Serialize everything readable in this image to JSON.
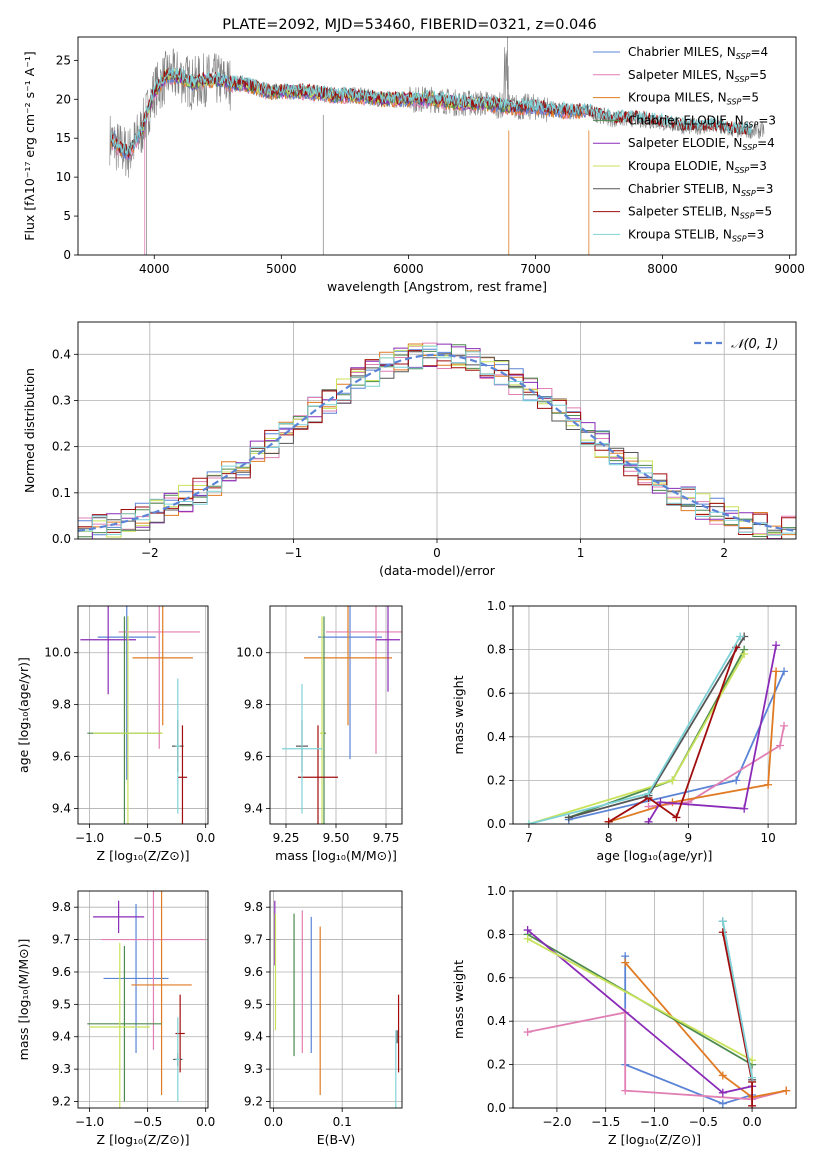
{
  "title": "PLATE=2092, MJD=53460, FIBERID=0321, z=0.046",
  "colors": {
    "Chabrier MILES": "#5b84d6",
    "Salpeter MILES": "#e17fb4",
    "Kroupa MILES": "#e07b23",
    "Chabrier ELODIE": "#4d8a4f",
    "Salpeter ELODIE": "#8a2bb7",
    "Kroupa ELODIE": "#c8e25a",
    "Chabrier STELIB": "#555555",
    "Salpeter STELIB": "#a10d0d",
    "Kroupa STELIB": "#7fd3d8",
    "normal": "#5b84d6"
  },
  "chart_data": [
    {
      "id": "spectrum",
      "type": "line",
      "xlabel": "wavelength [Angstrom, rest frame]",
      "ylabel": "Flux [fλ10⁻¹⁷ erg cm⁻² s⁻¹ A⁻¹]",
      "xlim": [
        3400,
        9050
      ],
      "ylim": [
        0,
        28
      ],
      "xticks": [
        4000,
        5000,
        6000,
        7000,
        8000,
        9000
      ],
      "yticks": [
        0,
        5,
        10,
        15,
        20,
        25
      ],
      "legend_position": "top-right",
      "legend": [
        {
          "model": "Chabrier MILES",
          "label": "Chabrier MILES, N",
          "n": "=4"
        },
        {
          "model": "Salpeter MILES",
          "label": "Salpeter MILES, N",
          "n": "=5"
        },
        {
          "model": "Kroupa MILES",
          "label": "Kroupa MILES, N",
          "n": "=5"
        },
        {
          "model": "Chabrier ELODIE",
          "label": "Chabrier ELODIE, N",
          "n": "=3"
        },
        {
          "model": "Salpeter ELODIE",
          "label": "Salpeter ELODIE, N",
          "n": "=4"
        },
        {
          "model": "Kroupa ELODIE",
          "label": "Kroupa ELODIE, N",
          "n": "=3"
        },
        {
          "model": "Chabrier STELIB",
          "label": "Chabrier STELIB, N",
          "n": "=3"
        },
        {
          "model": "Salpeter STELIB",
          "label": "Salpeter STELIB, N",
          "n": "=5"
        },
        {
          "model": "Kroupa STELIB",
          "label": "Kroupa STELIB, N",
          "n": "=3"
        }
      ],
      "data_series": {
        "wavelength": [
          3650,
          3700,
          3800,
          3900,
          4000,
          4100,
          4200,
          4300,
          4400,
          4500,
          4600,
          4700,
          4800,
          4900,
          5000,
          5200,
          5400,
          5600,
          5800,
          6000,
          6200,
          6400,
          6600,
          6800,
          7000,
          7200,
          7400,
          7600,
          7800,
          8000,
          8200,
          8400,
          8600,
          8800
        ],
        "flux": [
          15,
          14,
          13,
          16,
          21,
          23,
          23,
          22,
          22.5,
          22.5,
          22,
          22,
          21.5,
          21,
          21,
          21,
          20.5,
          20.5,
          20,
          20,
          20,
          19.5,
          19.5,
          19,
          19,
          18.5,
          18.5,
          17.5,
          17.5,
          17,
          16.5,
          16.5,
          16,
          16
        ]
      }
    },
    {
      "id": "residuals",
      "type": "histogram",
      "xlabel": "(data-model)/error",
      "ylabel": "Normed distribution",
      "xlim": [
        -2.5,
        2.5
      ],
      "ylim": [
        0,
        0.47
      ],
      "xticks": [
        -2,
        -1,
        0,
        1,
        2
      ],
      "yticks": [
        0.0,
        0.1,
        0.2,
        0.3,
        0.4
      ],
      "grid": true,
      "legend_position": "top-right",
      "legend": "𝒩(0, 1)"
    },
    {
      "id": "age_vs_Z",
      "type": "errorbar",
      "xlabel": "Z [log₁₀(Z/Z⊙)]",
      "ylabel": "age  [log₁₀(age/yr)]",
      "xlim": [
        -1.1,
        0.02
      ],
      "ylim": [
        9.34,
        10.18
      ],
      "xticks": [
        -1.0,
        -0.5,
        0.0
      ],
      "yticks": [
        9.4,
        9.6,
        9.8,
        10.0
      ],
      "grid": true,
      "points": [
        {
          "model": "Chabrier MILES",
          "x": -0.68,
          "xerr": 0.25,
          "y": 10.06,
          "yerr": 0.55
        },
        {
          "model": "Salpeter MILES",
          "x": -0.4,
          "xerr": 0.35,
          "y": 10.08,
          "yerr": 0.45
        },
        {
          "model": "Kroupa MILES",
          "x": -0.37,
          "xerr": 0.26,
          "y": 9.98,
          "yerr": 0.26
        },
        {
          "model": "Chabrier ELODIE",
          "x": -0.7,
          "xerr": 0.32,
          "y": 9.69,
          "yerr": 0.45
        },
        {
          "model": "Salpeter ELODIE",
          "x": -0.84,
          "xerr": 0.24,
          "y": 10.05,
          "yerr": 0.21
        },
        {
          "model": "Kroupa ELODIE",
          "x": -0.67,
          "xerr": 0.3,
          "y": 9.69,
          "yerr": 0.45
        },
        {
          "model": "Chabrier STELIB",
          "x": -0.24,
          "xerr": 0.05,
          "y": 9.64,
          "yerr": 0.1
        },
        {
          "model": "Salpeter STELIB",
          "x": -0.2,
          "xerr": 0.04,
          "y": 9.52,
          "yerr": 0.2
        },
        {
          "model": "Kroupa STELIB",
          "x": -0.24,
          "xerr": 0.02,
          "y": 9.64,
          "yerr": 0.26
        }
      ]
    },
    {
      "id": "age_vs_mass",
      "type": "errorbar",
      "xlabel": "mass [log₁₀(M/M⊙)]",
      "ylabel": "",
      "xlim": [
        9.17,
        9.83
      ],
      "ylim": [
        9.34,
        10.18
      ],
      "xticks": [
        9.25,
        9.5,
        9.75
      ],
      "yticks": [
        9.4,
        9.6,
        9.8,
        10.0
      ],
      "grid": true,
      "points": [
        {
          "model": "Chabrier MILES",
          "x": 9.57,
          "xerr": 0.16,
          "y": 10.06,
          "yerr": 0.47
        },
        {
          "model": "Salpeter MILES",
          "x": 9.7,
          "xerr": 0.25,
          "y": 10.08,
          "yerr": 0.47
        },
        {
          "model": "Kroupa MILES",
          "x": 9.56,
          "xerr": 0.22,
          "y": 9.98,
          "yerr": 0.26
        },
        {
          "model": "Chabrier ELODIE",
          "x": 9.44,
          "xerr": 0.01,
          "y": 9.69,
          "yerr": 0.45
        },
        {
          "model": "Salpeter ELODIE",
          "x": 9.76,
          "xerr": 0.06,
          "y": 10.05,
          "yerr": 0.2
        },
        {
          "model": "Kroupa ELODIE",
          "x": 9.43,
          "xerr": 0.01,
          "y": 9.69,
          "yerr": 0.45
        },
        {
          "model": "Chabrier STELIB",
          "x": 9.33,
          "xerr": 0.03,
          "y": 9.64,
          "yerr": 0.1
        },
        {
          "model": "Salpeter STELIB",
          "x": 9.41,
          "xerr": 0.1,
          "y": 9.52,
          "yerr": 0.2
        },
        {
          "model": "Kroupa STELIB",
          "x": 9.33,
          "xerr": 0.1,
          "y": 9.63,
          "yerr": 0.25
        }
      ]
    },
    {
      "id": "weight_vs_age",
      "type": "line",
      "xlabel": "age  [log₁₀(age/yr)]",
      "ylabel": "mass weight",
      "xlim": [
        6.8,
        10.35
      ],
      "ylim": [
        0,
        1.0
      ],
      "xticks": [
        7,
        8,
        9,
        10
      ],
      "yticks": [
        0.0,
        0.2,
        0.4,
        0.6,
        0.8,
        1.0
      ],
      "grid": true,
      "series": [
        {
          "model": "Chabrier MILES",
          "x": [
            7.5,
            9.6,
            10.2
          ],
          "y": [
            0.02,
            0.2,
            0.7
          ]
        },
        {
          "model": "Salpeter MILES",
          "x": [
            8.5,
            9.0,
            10.15,
            10.2
          ],
          "y": [
            0.08,
            0.1,
            0.36,
            0.45
          ]
        },
        {
          "model": "Kroupa MILES",
          "x": [
            8.0,
            8.8,
            10.0,
            10.1
          ],
          "y": [
            0.01,
            0.1,
            0.18,
            0.7
          ]
        },
        {
          "model": "Chabrier ELODIE",
          "x": [
            7.5,
            8.8,
            9.7
          ],
          "y": [
            0.03,
            0.2,
            0.8
          ]
        },
        {
          "model": "Salpeter ELODIE",
          "x": [
            8.5,
            8.65,
            9.7,
            10.1
          ],
          "y": [
            0.01,
            0.1,
            0.07,
            0.82
          ]
        },
        {
          "model": "Kroupa ELODIE",
          "x": [
            7.0,
            8.8,
            9.7
          ],
          "y": [
            0.0,
            0.2,
            0.78
          ]
        },
        {
          "model": "Chabrier STELIB",
          "x": [
            7.5,
            8.5,
            9.7
          ],
          "y": [
            0.03,
            0.13,
            0.86
          ]
        },
        {
          "model": "Salpeter STELIB",
          "x": [
            8.0,
            8.5,
            8.85,
            9.6
          ],
          "y": [
            0.01,
            0.12,
            0.03,
            0.81
          ]
        },
        {
          "model": "Kroupa STELIB",
          "x": [
            7.0,
            8.5,
            9.65
          ],
          "y": [
            0.0,
            0.14,
            0.86
          ]
        }
      ]
    },
    {
      "id": "mass_vs_Z",
      "type": "errorbar",
      "xlabel": "Z [log₁₀(Z/Z⊙)]",
      "ylabel": "mass [log₁₀(M/M⊙)]",
      "xlim": [
        -1.1,
        0.02
      ],
      "ylim": [
        9.18,
        9.85
      ],
      "xticks": [
        -1.0,
        -0.5,
        0.0
      ],
      "yticks": [
        9.2,
        9.3,
        9.4,
        9.5,
        9.6,
        9.7,
        9.8
      ],
      "grid": true,
      "points": [
        {
          "model": "Chabrier MILES",
          "x": -0.6,
          "xerr": 0.28,
          "y": 9.58,
          "yerr": 0.23
        },
        {
          "model": "Salpeter MILES",
          "x": -0.45,
          "xerr": 0.45,
          "y": 9.7,
          "yerr": 0.34
        },
        {
          "model": "Kroupa MILES",
          "x": -0.38,
          "xerr": 0.26,
          "y": 9.56,
          "yerr": 0.34
        },
        {
          "model": "Chabrier ELODIE",
          "x": -0.7,
          "xerr": 0.32,
          "y": 9.44,
          "yerr": 0.24
        },
        {
          "model": "Salpeter ELODIE",
          "x": -0.75,
          "xerr": 0.22,
          "y": 9.77,
          "yerr": 0.05
        },
        {
          "model": "Kroupa ELODIE",
          "x": -0.74,
          "xerr": 0.26,
          "y": 9.43,
          "yerr": 0.26
        },
        {
          "model": "Chabrier STELIB",
          "x": -0.24,
          "xerr": 0.04,
          "y": 9.33,
          "yerr": 0.02
        },
        {
          "model": "Salpeter STELIB",
          "x": -0.22,
          "xerr": 0.04,
          "y": 9.41,
          "yerr": 0.12
        },
        {
          "model": "Kroupa STELIB",
          "x": -0.24,
          "xerr": 0.02,
          "y": 9.33,
          "yerr": 0.13
        }
      ]
    },
    {
      "id": "mass_vs_EBV",
      "type": "errorbar",
      "xlabel": "E(B-V)",
      "ylabel": "",
      "xlim": [
        -0.005,
        0.187
      ],
      "ylim": [
        9.18,
        9.85
      ],
      "xticks": [
        0.0,
        0.1
      ],
      "yticks": [
        9.2,
        9.3,
        9.4,
        9.5,
        9.6,
        9.7,
        9.8
      ],
      "grid": true,
      "points": [
        {
          "model": "Chabrier MILES",
          "x": 0.055,
          "xerr": 0,
          "y": 9.56,
          "yerr": 0.21
        },
        {
          "model": "Salpeter MILES",
          "x": 0.042,
          "xerr": 0,
          "y": 9.57,
          "yerr": 0.22
        },
        {
          "model": "Kroupa MILES",
          "x": 0.068,
          "xerr": 0,
          "y": 9.48,
          "yerr": 0.26
        },
        {
          "model": "Chabrier ELODIE",
          "x": 0.03,
          "xerr": 0,
          "y": 9.56,
          "yerr": 0.22
        },
        {
          "model": "Salpeter ELODIE",
          "x": 0.002,
          "xerr": 0,
          "y": 9.72,
          "yerr": 0.1
        },
        {
          "model": "Kroupa ELODIE",
          "x": 0.003,
          "xerr": 0,
          "y": 9.6,
          "yerr": 0.18
        },
        {
          "model": "Chabrier STELIB",
          "x": 0.18,
          "xerr": 0,
          "y": 9.4,
          "yerr": 0.02
        },
        {
          "model": "Salpeter STELIB",
          "x": 0.182,
          "xerr": 0,
          "y": 9.41,
          "yerr": 0.12
        },
        {
          "model": "Kroupa STELIB",
          "x": 0.178,
          "xerr": 0,
          "y": 9.3,
          "yerr": 0.12
        }
      ]
    },
    {
      "id": "weight_vs_Z",
      "type": "line",
      "xlabel": "Z [log₁₀(Z/Z⊙)]",
      "ylabel": "mass weight",
      "xlim": [
        -2.45,
        0.45
      ],
      "ylim": [
        0,
        1.0
      ],
      "xticks": [
        -2.0,
        -1.5,
        -1.0,
        -0.5,
        0.0
      ],
      "yticks": [
        0.0,
        0.2,
        0.4,
        0.6,
        0.8,
        1.0
      ],
      "grid": true,
      "series": [
        {
          "model": "Chabrier MILES",
          "x": [
            -1.3,
            -1.3,
            -0.3,
            0.0
          ],
          "y": [
            0.7,
            0.2,
            0.02,
            0.06
          ]
        },
        {
          "model": "Salpeter MILES",
          "x": [
            -2.3,
            -1.3,
            -1.3,
            0.0,
            0.35
          ],
          "y": [
            0.35,
            0.44,
            0.08,
            0.04,
            0.08
          ]
        },
        {
          "model": "Kroupa MILES",
          "x": [
            -1.3,
            -0.3,
            0.0,
            0.35
          ],
          "y": [
            0.67,
            0.15,
            0.05,
            0.08
          ]
        },
        {
          "model": "Chabrier ELODIE",
          "x": [
            -2.3,
            0.0
          ],
          "y": [
            0.8,
            0.2
          ]
        },
        {
          "model": "Salpeter ELODIE",
          "x": [
            -2.3,
            -0.3,
            0.0
          ],
          "y": [
            0.82,
            0.07,
            0.1
          ]
        },
        {
          "model": "Kroupa ELODIE",
          "x": [
            -2.3,
            0.0
          ],
          "y": [
            0.78,
            0.22
          ]
        },
        {
          "model": "Chabrier STELIB",
          "x": [
            -0.3,
            0.0
          ],
          "y": [
            0.86,
            0.13
          ]
        },
        {
          "model": "Salpeter STELIB",
          "x": [
            -0.3,
            0.0,
            0.0
          ],
          "y": [
            0.81,
            0.12,
            0.01
          ]
        },
        {
          "model": "Kroupa STELIB",
          "x": [
            -0.3,
            0.0
          ],
          "y": [
            0.86,
            0.14
          ]
        }
      ]
    }
  ]
}
